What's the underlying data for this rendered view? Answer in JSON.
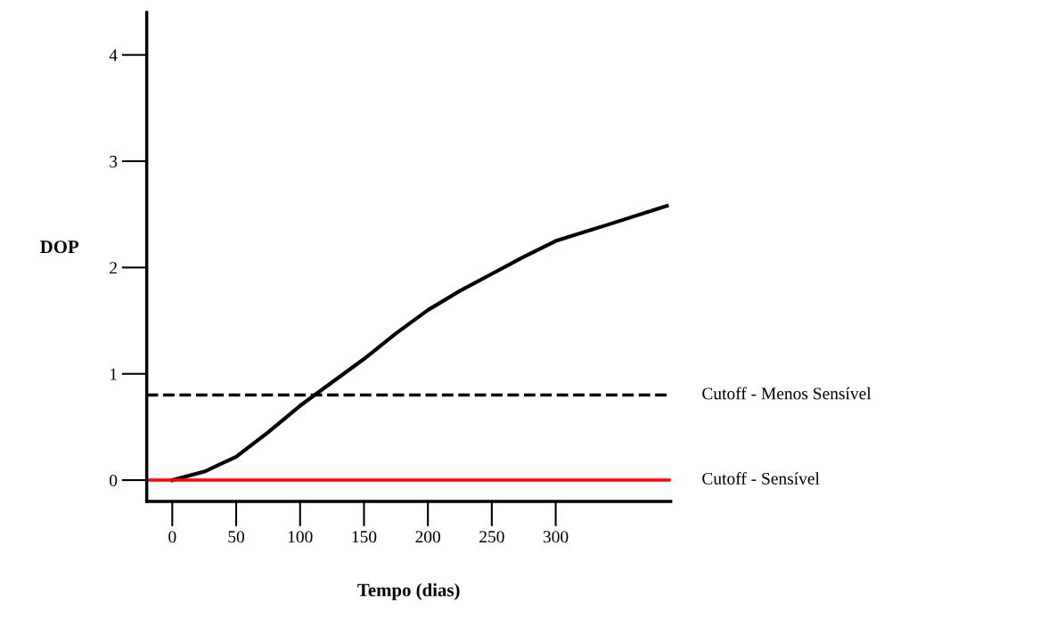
{
  "chart_data": {
    "type": "line",
    "xlabel": "Tempo (dias)",
    "ylabel": "DOP",
    "x": [
      0,
      25,
      50,
      75,
      100,
      125,
      150,
      175,
      200,
      225,
      250,
      275,
      300,
      340,
      387
    ],
    "series": [
      {
        "color": "#000000",
        "values": [
          0,
          0.08,
          0.22,
          0.45,
          0.7,
          0.92,
          1.14,
          1.38,
          1.6,
          1.78,
          1.94,
          2.1,
          2.25,
          2.4,
          2.58
        ]
      }
    ],
    "xlim": [
      -20,
      390
    ],
    "xticks": [
      0,
      50,
      100,
      150,
      200,
      250,
      300
    ],
    "ylim": [
      -0.2,
      4.4
    ],
    "yticks": [
      0,
      1,
      2,
      3,
      4
    ],
    "ref_lines": [
      {
        "axis": "y",
        "value": 0.8,
        "label": "Cutoff - Menos Sensível",
        "color": "#000000",
        "line_style": "dashed"
      },
      {
        "axis": "y",
        "value": 0,
        "label": "Cutoff - Sensível",
        "color": "#ff0000",
        "line_style": "solid"
      }
    ],
    "grid": false,
    "legend": false,
    "marker": "none",
    "line_style": "solid"
  }
}
